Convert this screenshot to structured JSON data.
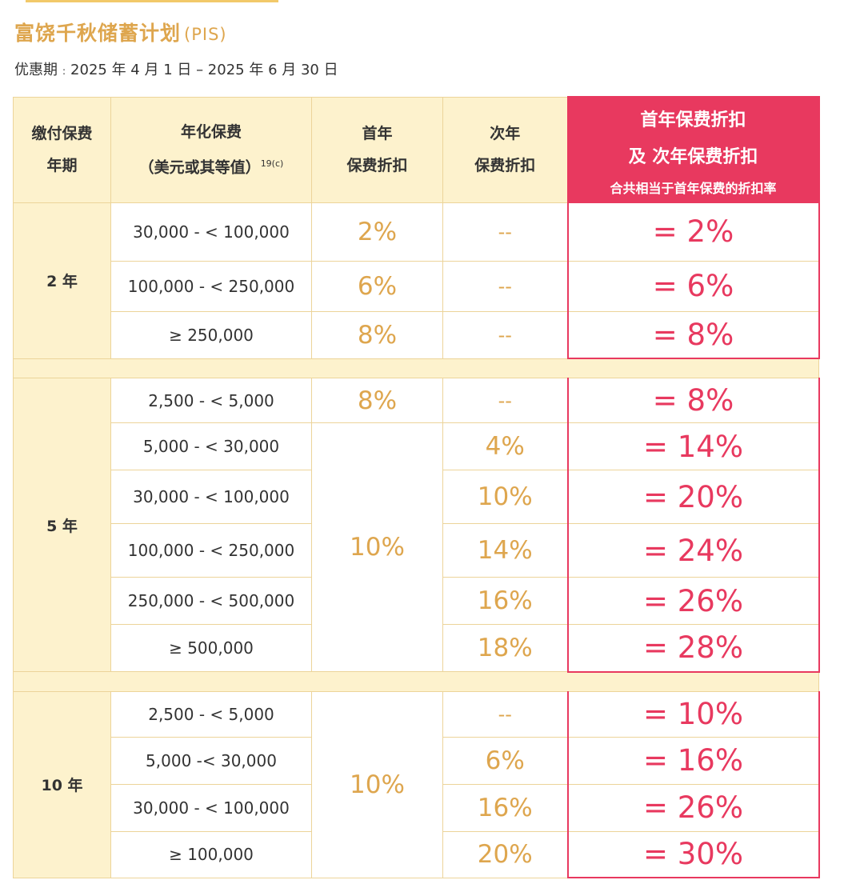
{
  "title": "富饶千秋储蓄计划",
  "title_suffix": "(PIS)",
  "period_label": "优惠期",
  "period_sep": ":",
  "period_value": "2025 年 4 月 1 日 – 2025 年 6 月 30 日",
  "headers": {
    "term": [
      "缴付保费",
      "年期"
    ],
    "premium": [
      "年化保费",
      "（美元或其等值）"
    ],
    "premium_note": "19(c)",
    "first": [
      "首年",
      "保费折扣"
    ],
    "second": [
      "次年",
      "保费折扣"
    ],
    "combined": [
      "首年保费折扣",
      "及 次年保费折扣"
    ],
    "combined_sub": "合共相当于首年保费的折扣率"
  },
  "groups": [
    {
      "term": "2 年",
      "rows": [
        {
          "range": "30,000 - < 100,000",
          "first": "2%",
          "second": "--",
          "total": "= 2%"
        },
        {
          "range": "100,000 - < 250,000",
          "first": "6%",
          "second": "--",
          "total": "= 6%"
        },
        {
          "range": "≥ 250,000",
          "first": "8%",
          "second": "--",
          "total": "= 8%"
        }
      ]
    },
    {
      "term": "5 年",
      "rows": [
        {
          "range": "2,500 - < 5,000",
          "first": "8%",
          "second": "--",
          "total": "= 8%"
        },
        {
          "range": "5,000 - < 30,000",
          "first": "10%",
          "second": "4%",
          "total": "= 14%"
        },
        {
          "range": "30,000 - < 100,000",
          "first": "10%",
          "second": "10%",
          "total": "= 20%"
        },
        {
          "range": "100,000 - < 250,000",
          "first": "10%",
          "second": "14%",
          "total": "= 24%"
        },
        {
          "range": "250,000 - < 500,000",
          "first": "10%",
          "second": "16%",
          "total": "= 26%"
        },
        {
          "range": "≥ 500,000",
          "first": "10%",
          "second": "18%",
          "total": "= 28%"
        }
      ]
    },
    {
      "term": "10 年",
      "rows": [
        {
          "range": "2,500 - < 5,000",
          "first": "10%",
          "second": "--",
          "total": "= 10%"
        },
        {
          "range": "5,000 -< 30,000",
          "first": "10%",
          "second": "6%",
          "total": "= 16%"
        },
        {
          "range": "30,000 - < 100,000",
          "first": "10%",
          "second": "16%",
          "total": "= 26%"
        },
        {
          "range": "≥ 100,000",
          "first": "10%",
          "second": "20%",
          "total": "= 30%"
        }
      ]
    }
  ],
  "colors": {
    "gold": "#dea64e",
    "pink": "#e8395f",
    "cream": "#fdf2cd"
  }
}
